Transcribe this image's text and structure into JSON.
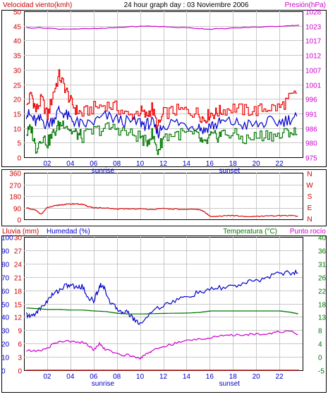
{
  "chart_data": [
    {
      "type": "line",
      "header": {
        "left": "Velocidad viento(kmh)",
        "center": "24 hour graph day : 03 Noviembre 2006",
        "right": "Presión(hPa)"
      },
      "left_axis": {
        "ticks": [
          "0",
          "5",
          "10",
          "15",
          "20",
          "25",
          "30",
          "35",
          "40",
          "45",
          "50"
        ],
        "range": [
          0,
          50
        ],
        "color": "#cc0000"
      },
      "right_axis": {
        "ticks": [
          "975",
          "980",
          "986",
          "991",
          "996",
          "1001",
          "1007",
          "1012",
          "1017",
          "1023",
          "1028"
        ],
        "range": [
          975,
          1028
        ],
        "color": "#cc00cc"
      },
      "x_ticks": [
        "02",
        "04",
        "06",
        "08",
        "10",
        "12",
        "14",
        "16",
        "18",
        "20",
        "22"
      ],
      "x_range": [
        0,
        24
      ],
      "sunrise": "sunrise",
      "sunset": "sunset",
      "sunrise_hour": 6.8,
      "sunset_hour": 17.7,
      "grid": true,
      "series": [
        {
          "id": "gust",
          "color": "#ee0000",
          "style": "step",
          "axis": "left",
          "x": [
            0.2,
            0.6,
            1.0,
            1.5,
            2.0,
            2.5,
            3.0,
            3.5,
            4.0,
            4.5,
            5.0,
            6.0,
            7.0,
            8.0,
            9.0,
            10.0,
            10.5,
            11.0,
            11.5,
            12.0,
            13.0,
            14.0,
            15.0,
            15.5,
            16.0,
            16.5,
            17.0,
            18.0,
            19.0,
            20.0,
            21.0,
            22.0,
            22.8,
            23.5
          ],
          "y": [
            17,
            22,
            16,
            20,
            14,
            22,
            28,
            24,
            19,
            16,
            15,
            17,
            18,
            17,
            14,
            16,
            14,
            17,
            10,
            15,
            16,
            16,
            15,
            13,
            15,
            15,
            16,
            17,
            16,
            16,
            17,
            17,
            20,
            22
          ]
        },
        {
          "id": "avg",
          "color": "#0000cc",
          "style": "line",
          "axis": "left",
          "x": [
            0.2,
            0.6,
            1.0,
            1.5,
            2.0,
            2.5,
            3.0,
            3.5,
            4.0,
            4.5,
            5.0,
            6.0,
            7.0,
            8.0,
            9.0,
            10.0,
            10.5,
            11.0,
            11.5,
            12.0,
            13.0,
            14.0,
            15.0,
            15.5,
            16.0,
            16.5,
            17.0,
            18.0,
            19.0,
            20.0,
            21.0,
            22.0,
            22.8,
            23.5
          ],
          "y": [
            15,
            14,
            12,
            13,
            11,
            13,
            16,
            15,
            13,
            12,
            11,
            12,
            14,
            13,
            12,
            12,
            11,
            12,
            8,
            11,
            12,
            11,
            11,
            9,
            11,
            11,
            12,
            12,
            11,
            11,
            12,
            12,
            13,
            14
          ]
        },
        {
          "id": "min",
          "color": "#007700",
          "style": "step",
          "axis": "left",
          "x": [
            0.2,
            0.6,
            1.0,
            1.5,
            2.0,
            2.5,
            3.0,
            3.5,
            4.0,
            4.5,
            5.0,
            6.0,
            7.0,
            8.0,
            9.0,
            10.0,
            10.5,
            11.0,
            11.5,
            12.0,
            13.0,
            14.0,
            15.0,
            15.5,
            16.0,
            16.5,
            17.0,
            18.0,
            19.0,
            20.0,
            21.0,
            22.0,
            22.8,
            23.5
          ],
          "y": [
            8,
            10,
            3,
            7,
            5,
            8,
            11,
            12,
            9,
            8,
            7,
            9,
            10,
            10,
            8,
            7,
            5,
            8,
            2,
            7,
            8,
            8,
            7,
            4,
            7,
            7,
            8,
            8,
            6,
            7,
            8,
            7,
            9,
            8
          ]
        },
        {
          "id": "pressure",
          "color": "#cc00cc",
          "style": "line",
          "axis": "right",
          "x": [
            0.2,
            1.5,
            3.0,
            5.0,
            7.0,
            9.0,
            11.0,
            13.0,
            15.0,
            16.0,
            17.0,
            19.0,
            21.0,
            23.0,
            23.7
          ],
          "y": [
            1022,
            1022,
            1021.6,
            1021.6,
            1021.8,
            1022.4,
            1022.6,
            1022.2,
            1021.8,
            1021.5,
            1021.7,
            1022.1,
            1022.4,
            1022.8,
            1023
          ]
        }
      ]
    },
    {
      "type": "line",
      "right_title": [
        "N",
        "W",
        "S",
        "E",
        "N"
      ],
      "left_axis": {
        "ticks": [
          "0",
          "90",
          "180",
          "270",
          "360"
        ],
        "range": [
          0,
          360
        ],
        "color": "#cc0000"
      },
      "x_range": [
        0,
        24
      ],
      "grid": true,
      "series": [
        {
          "id": "direction",
          "color": "#dd0000",
          "style": "line",
          "x": [
            0.2,
            0.5,
            1.0,
            1.5,
            2.0,
            2.5,
            3.0,
            3.5,
            4.0,
            4.5,
            5.0,
            5.5,
            6.0,
            7.0,
            8.0,
            9.0,
            10.0,
            11.0,
            12.0,
            13.0,
            14.0,
            15.0,
            15.5,
            16.0,
            17.0,
            18.0,
            19.0,
            20.0,
            21.0,
            22.0,
            23.0,
            23.6
          ],
          "y": [
            90,
            80,
            70,
            40,
            90,
            100,
            110,
            115,
            118,
            120,
            116,
            100,
            90,
            85,
            80,
            82,
            80,
            78,
            82,
            80,
            75,
            78,
            60,
            25,
            25,
            30,
            20,
            22,
            25,
            28,
            30,
            25
          ]
        }
      ]
    },
    {
      "type": "line",
      "header": {
        "left1": "Lluvia (mm)",
        "left2": "Humedad (%)",
        "right1": "Temperatura (°C)",
        "right2": "Punto rocío"
      },
      "rain_axis": {
        "ticks": [
          "0",
          "3",
          "6",
          "9",
          "12",
          "15",
          "18",
          "21",
          "24",
          "27",
          "30"
        ],
        "range": [
          0,
          30
        ],
        "color": "#cc0000"
      },
      "humidity_axis": {
        "ticks": [
          "0",
          "10",
          "20",
          "30",
          "40",
          "50",
          "60",
          "70",
          "80",
          "90",
          "100"
        ],
        "range": [
          0,
          100
        ],
        "color": "#0000cc"
      },
      "temp_axis": {
        "ticks": [
          "-5",
          "0",
          "4",
          "8",
          "13",
          "18",
          "22",
          "26",
          "31",
          "36",
          "40"
        ],
        "range": [
          -5,
          40
        ],
        "color": "#007700"
      },
      "x_ticks": [
        "02",
        "04",
        "06",
        "08",
        "10",
        "12",
        "14",
        "16",
        "18",
        "20",
        "22"
      ],
      "x_range": [
        0,
        24
      ],
      "sunrise": "sunrise",
      "sunset": "sunset",
      "sunrise_hour": 6.8,
      "sunset_hour": 17.7,
      "grid": true,
      "series": [
        {
          "id": "humidity",
          "color": "#0000cc",
          "style": "line",
          "axis": "humidity",
          "x": [
            0.2,
            0.5,
            1.0,
            1.5,
            2.0,
            2.5,
            3.0,
            3.5,
            4.0,
            4.5,
            5.0,
            5.5,
            6.0,
            6.3,
            6.6,
            7.0,
            7.5,
            8.0,
            8.5,
            9.0,
            9.5,
            10.0,
            11.0,
            12.0,
            13.0,
            14.0,
            15.0,
            16.0,
            17.0,
            18.0,
            19.0,
            20.0,
            21.0,
            22.0,
            23.0,
            23.6
          ],
          "y": [
            42,
            40,
            43,
            47,
            52,
            57,
            60,
            63,
            64,
            62,
            63,
            55,
            52,
            58,
            65,
            60,
            50,
            46,
            44,
            43,
            38,
            35,
            44,
            49,
            52,
            55,
            58,
            60,
            62,
            63,
            65,
            67,
            70,
            73,
            73,
            73
          ],
          "jitter": 2
        },
        {
          "id": "temperature",
          "color": "#007700",
          "style": "step",
          "axis": "temp",
          "x": [
            0.2,
            1.0,
            2.0,
            3.0,
            4.0,
            5.0,
            6.0,
            7.0,
            8.0,
            9.0,
            10.0,
            12.0,
            14.0,
            15.0,
            16.0,
            18.0,
            20.0,
            22.0,
            23.0,
            23.6
          ],
          "y": [
            16,
            15.8,
            15.5,
            15.5,
            15.3,
            15.3,
            15.0,
            14.8,
            14.2,
            14.0,
            14.0,
            14.2,
            14.3,
            14.5,
            15.0,
            15.0,
            15.0,
            15.0,
            14.5,
            14.0
          ]
        },
        {
          "id": "dewpoint",
          "color": "#cc00cc",
          "style": "line",
          "axis": "temp",
          "x": [
            0.2,
            1.0,
            2.0,
            2.5,
            3.0,
            4.0,
            5.0,
            5.5,
            6.0,
            6.5,
            7.0,
            8.0,
            9.0,
            10.0,
            10.5,
            11.0,
            12.0,
            13.0,
            14.0,
            15.0,
            16.0,
            17.0,
            18.0,
            19.0,
            20.0,
            21.0,
            22.0,
            23.0,
            23.6
          ],
          "y": [
            1.5,
            1.5,
            2.2,
            4.0,
            4.5,
            4.8,
            4.5,
            3.5,
            2.0,
            4.0,
            2.0,
            0.5,
            0.0,
            -1.0,
            0.5,
            1.5,
            3.0,
            4.0,
            5.0,
            5.5,
            6.0,
            6.5,
            6.8,
            7.0,
            7.2,
            7.4,
            8.0,
            8.0,
            7.0
          ],
          "jitter": 0.4
        },
        {
          "id": "rain",
          "color": "#cc0000",
          "style": "line",
          "axis": "rain",
          "x": [
            0.2,
            23.7
          ],
          "y": [
            0,
            0
          ]
        }
      ]
    }
  ]
}
